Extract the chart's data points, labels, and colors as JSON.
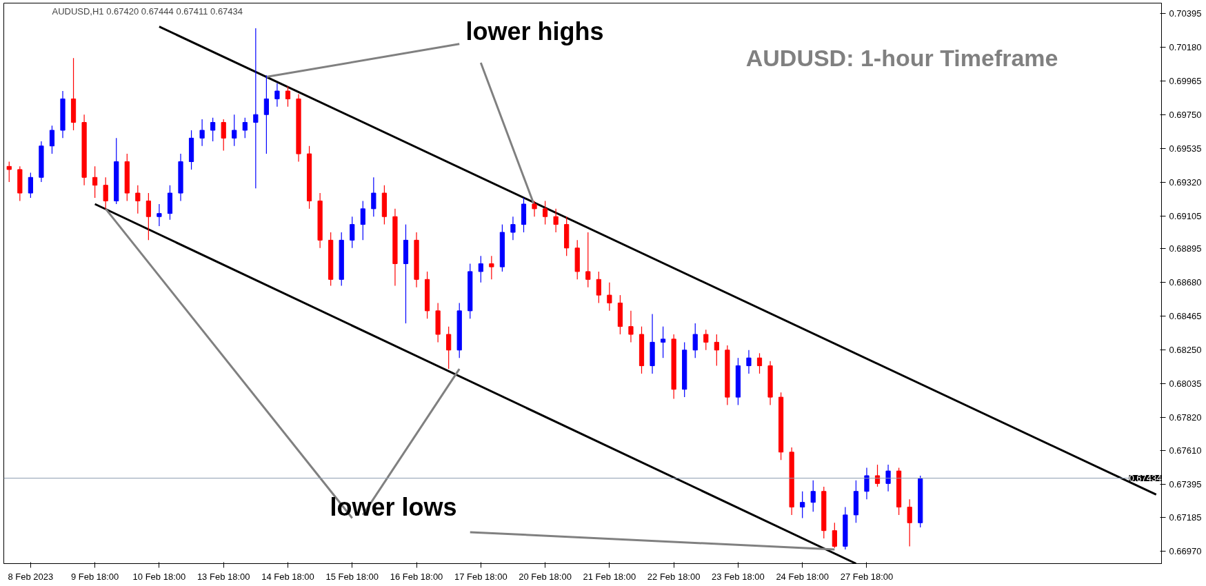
{
  "chart_data": {
    "type": "candlestick",
    "title": "AUDUSD: 1-hour Timeframe",
    "subtitle": "AUDUSD,H1  0.67420 0.67444 0.67411 0.67434",
    "categories": [
      null,
      null,
      "8 Feb 2023",
      null,
      null,
      null,
      null,
      null,
      "9 Feb 18:00",
      null,
      null,
      null,
      null,
      null,
      "10 Feb 18:00",
      null,
      null,
      null,
      null,
      null,
      "13 Feb 18:00",
      null,
      null,
      null,
      null,
      null,
      "14 Feb 18:00",
      null,
      null,
      null,
      null,
      null,
      "15 Feb 18:00",
      null,
      null,
      null,
      null,
      null,
      "16 Feb 18:00",
      null,
      null,
      null,
      null,
      null,
      "17 Feb 18:00",
      null,
      null,
      null,
      null,
      null,
      "20 Feb 18:00",
      null,
      null,
      null,
      null,
      null,
      "21 Feb 18:00",
      null,
      null,
      null,
      null,
      null,
      "22 Feb 18:00",
      null,
      null,
      null,
      null,
      null,
      "23 Feb 18:00",
      null,
      null,
      null,
      null,
      null,
      "24 Feb 18:00",
      null,
      null,
      null,
      null,
      null,
      "27 Feb 18:00",
      null,
      null,
      null,
      null,
      null,
      null,
      null,
      null,
      null,
      null,
      null,
      null,
      null,
      null,
      null,
      null,
      null,
      null,
      null,
      null,
      null,
      null,
      null,
      null,
      null,
      null,
      null
    ],
    "ohlc": [
      [
        0.6942,
        0.6945,
        0.6932,
        0.694
      ],
      [
        0.694,
        0.6942,
        0.692,
        0.6925
      ],
      [
        0.6925,
        0.6938,
        0.6922,
        0.6935
      ],
      [
        0.6935,
        0.6958,
        0.6932,
        0.6955
      ],
      [
        0.6955,
        0.6968,
        0.695,
        0.6965
      ],
      [
        0.6965,
        0.699,
        0.696,
        0.6985
      ],
      [
        0.6985,
        0.7011,
        0.6965,
        0.697
      ],
      [
        0.697,
        0.6975,
        0.693,
        0.6935
      ],
      [
        0.6935,
        0.6942,
        0.6922,
        0.693
      ],
      [
        0.693,
        0.6935,
        0.6915,
        0.692
      ],
      [
        0.692,
        0.696,
        0.6918,
        0.6945
      ],
      [
        0.6945,
        0.695,
        0.692,
        0.6925
      ],
      [
        0.6925,
        0.693,
        0.6912,
        0.692
      ],
      [
        0.692,
        0.6925,
        0.6895,
        0.691
      ],
      [
        0.691,
        0.6918,
        0.6904,
        0.6912
      ],
      [
        0.6912,
        0.693,
        0.6908,
        0.6925
      ],
      [
        0.6925,
        0.695,
        0.692,
        0.6945
      ],
      [
        0.6945,
        0.6965,
        0.694,
        0.696
      ],
      [
        0.696,
        0.6972,
        0.6955,
        0.6965
      ],
      [
        0.6965,
        0.6973,
        0.6958,
        0.697
      ],
      [
        0.697,
        0.6972,
        0.6952,
        0.696
      ],
      [
        0.696,
        0.6975,
        0.6955,
        0.6965
      ],
      [
        0.6965,
        0.6973,
        0.696,
        0.697
      ],
      [
        0.697,
        0.703,
        0.6928,
        0.6975
      ],
      [
        0.6975,
        0.7,
        0.695,
        0.6985
      ],
      [
        0.6985,
        0.6995,
        0.698,
        0.699
      ],
      [
        0.699,
        0.6993,
        0.698,
        0.6985
      ],
      [
        0.6985,
        0.6988,
        0.6945,
        0.695
      ],
      [
        0.695,
        0.6955,
        0.6915,
        0.692
      ],
      [
        0.692,
        0.6925,
        0.689,
        0.6895
      ],
      [
        0.6895,
        0.69,
        0.6866,
        0.687
      ],
      [
        0.687,
        0.69,
        0.6866,
        0.6895
      ],
      [
        0.6895,
        0.691,
        0.689,
        0.6905
      ],
      [
        0.6905,
        0.692,
        0.6895,
        0.6915
      ],
      [
        0.6915,
        0.6935,
        0.691,
        0.6925
      ],
      [
        0.6925,
        0.693,
        0.6905,
        0.691
      ],
      [
        0.691,
        0.6915,
        0.6866,
        0.688
      ],
      [
        0.688,
        0.6905,
        0.6842,
        0.6895
      ],
      [
        0.6895,
        0.69,
        0.6865,
        0.687
      ],
      [
        0.687,
        0.6875,
        0.6845,
        0.685
      ],
      [
        0.685,
        0.6855,
        0.683,
        0.6835
      ],
      [
        0.6835,
        0.684,
        0.6813,
        0.6825
      ],
      [
        0.6825,
        0.6855,
        0.682,
        0.685
      ],
      [
        0.685,
        0.688,
        0.6845,
        0.6875
      ],
      [
        0.6875,
        0.6885,
        0.6868,
        0.688
      ],
      [
        0.688,
        0.6885,
        0.687,
        0.6878
      ],
      [
        0.6878,
        0.6905,
        0.6875,
        0.69
      ],
      [
        0.69,
        0.691,
        0.6895,
        0.6905
      ],
      [
        0.6905,
        0.6922,
        0.69,
        0.6918
      ],
      [
        0.6918,
        0.692,
        0.691,
        0.6915
      ],
      [
        0.6915,
        0.692,
        0.6905,
        0.691
      ],
      [
        0.691,
        0.6915,
        0.69,
        0.6905
      ],
      [
        0.6905,
        0.691,
        0.6885,
        0.689
      ],
      [
        0.689,
        0.6895,
        0.687,
        0.6875
      ],
      [
        0.6875,
        0.69,
        0.6865,
        0.687
      ],
      [
        0.687,
        0.6875,
        0.6855,
        0.686
      ],
      [
        0.686,
        0.6868,
        0.685,
        0.6855
      ],
      [
        0.6855,
        0.686,
        0.6835,
        0.684
      ],
      [
        0.684,
        0.685,
        0.683,
        0.6835
      ],
      [
        0.6835,
        0.684,
        0.681,
        0.6815
      ],
      [
        0.6815,
        0.6848,
        0.681,
        0.683
      ],
      [
        0.683,
        0.684,
        0.682,
        0.6832
      ],
      [
        0.6832,
        0.6835,
        0.6794,
        0.68
      ],
      [
        0.68,
        0.683,
        0.6795,
        0.6825
      ],
      [
        0.6825,
        0.6842,
        0.682,
        0.6835
      ],
      [
        0.6835,
        0.6838,
        0.6825,
        0.683
      ],
      [
        0.683,
        0.6835,
        0.6815,
        0.6825
      ],
      [
        0.6825,
        0.6828,
        0.679,
        0.6795
      ],
      [
        0.6795,
        0.682,
        0.679,
        0.6815
      ],
      [
        0.6815,
        0.6825,
        0.681,
        0.682
      ],
      [
        0.682,
        0.6823,
        0.681,
        0.6815
      ],
      [
        0.6815,
        0.6818,
        0.679,
        0.6795
      ],
      [
        0.6795,
        0.6798,
        0.6755,
        0.676
      ],
      [
        0.676,
        0.6763,
        0.672,
        0.6725
      ],
      [
        0.6725,
        0.6735,
        0.6718,
        0.6728
      ],
      [
        0.6728,
        0.6742,
        0.6722,
        0.6735
      ],
      [
        0.6735,
        0.6738,
        0.6705,
        0.671
      ],
      [
        0.671,
        0.6715,
        0.6699,
        0.67
      ],
      [
        0.67,
        0.6725,
        0.6698,
        0.672
      ],
      [
        0.672,
        0.6742,
        0.6715,
        0.6735
      ],
      [
        0.6735,
        0.675,
        0.673,
        0.6745
      ],
      [
        0.6745,
        0.6752,
        0.6738,
        0.674
      ],
      [
        0.674,
        0.6752,
        0.6735,
        0.6748
      ],
      [
        0.6748,
        0.675,
        0.672,
        0.6725
      ],
      [
        0.6725,
        0.673,
        0.67,
        0.6715
      ],
      [
        0.6715,
        0.6745,
        0.6712,
        0.6743
      ],
      null,
      null,
      null,
      null,
      null,
      null,
      null,
      null,
      null,
      null,
      null,
      null,
      null,
      null,
      null,
      null,
      null,
      null,
      null,
      null,
      null,
      null
    ],
    "colors": [
      "#ff0000",
      "#ff0000",
      "#0000ff",
      "#0000ff",
      "#0000ff",
      "#0000ff",
      "#ff0000",
      "#ff0000",
      "#ff0000",
      "#ff0000",
      "#0000ff",
      "#ff0000",
      "#ff0000",
      "#ff0000",
      "#0000ff",
      "#0000ff",
      "#0000ff",
      "#0000ff",
      "#0000ff",
      "#0000ff",
      "#ff0000",
      "#0000ff",
      "#0000ff",
      "#0000ff",
      "#0000ff",
      "#0000ff",
      "#ff0000",
      "#ff0000",
      "#ff0000",
      "#ff0000",
      "#ff0000",
      "#0000ff",
      "#0000ff",
      "#0000ff",
      "#0000ff",
      "#ff0000",
      "#ff0000",
      "#0000ff",
      "#ff0000",
      "#ff0000",
      "#ff0000",
      "#ff0000",
      "#0000ff",
      "#0000ff",
      "#0000ff",
      "#ff0000",
      "#0000ff",
      "#0000ff",
      "#0000ff",
      "#ff0000",
      "#ff0000",
      "#ff0000",
      "#ff0000",
      "#ff0000",
      "#ff0000",
      "#ff0000",
      "#ff0000",
      "#ff0000",
      "#ff0000",
      "#ff0000",
      "#0000ff",
      "#0000ff",
      "#ff0000",
      "#0000ff",
      "#0000ff",
      "#ff0000",
      "#ff0000",
      "#ff0000",
      "#0000ff",
      "#0000ff",
      "#ff0000",
      "#ff0000",
      "#ff0000",
      "#ff0000",
      "#0000ff",
      "#0000ff",
      "#ff0000",
      "#ff0000",
      "#0000ff",
      "#0000ff",
      "#0000ff",
      "#ff0000",
      "#0000ff",
      "#ff0000",
      "#ff0000",
      "#0000ff",
      null,
      null,
      null,
      null,
      null,
      null,
      null,
      null,
      null,
      null,
      null,
      null,
      null,
      null,
      null,
      null,
      null,
      null,
      null,
      null,
      null,
      null
    ],
    "series": [
      {
        "type": "line",
        "color": "#000000",
        "values": [
          null,
          null,
          null,
          null,
          null,
          null,
          null,
          null,
          null,
          null,
          null,
          null,
          null,
          null,
          0.7031,
          null,
          null,
          null,
          null,
          null,
          null,
          null,
          null,
          null,
          null,
          null,
          null,
          null,
          null,
          null,
          null,
          null,
          null,
          null,
          null,
          null,
          null,
          null,
          null,
          null,
          null,
          null,
          null,
          null,
          null,
          null,
          null,
          null,
          null,
          null,
          null,
          null,
          null,
          null,
          null,
          null,
          null,
          null,
          null,
          null,
          null,
          null,
          null,
          null,
          null,
          null,
          null,
          null,
          null,
          null,
          null,
          null,
          null,
          null,
          null,
          null,
          null,
          null,
          null,
          null,
          null,
          null,
          null,
          null,
          null,
          null,
          null,
          null,
          null,
          null,
          null,
          null,
          null,
          null,
          null,
          null,
          null,
          null,
          null,
          null,
          null,
          null,
          null,
          null,
          null,
          null,
          null,
          0.6733
        ]
      },
      {
        "type": "line",
        "color": "#000000",
        "values": [
          null,
          null,
          null,
          null,
          null,
          null,
          null,
          null,
          0.6918,
          null,
          null,
          null,
          null,
          null,
          null,
          null,
          null,
          null,
          null,
          null,
          null,
          null,
          null,
          null,
          null,
          null,
          null,
          null,
          null,
          null,
          null,
          null,
          null,
          null,
          null,
          null,
          null,
          null,
          null,
          null,
          null,
          null,
          null,
          null,
          null,
          null,
          null,
          null,
          null,
          null,
          null,
          null,
          null,
          null,
          null,
          null,
          null,
          null,
          null,
          null,
          null,
          null,
          null,
          null,
          null,
          null,
          null,
          null,
          null,
          null,
          null,
          null,
          null,
          null,
          null,
          null,
          null,
          null,
          null,
          0.6689,
          null,
          null,
          null,
          null,
          null,
          null,
          null,
          null,
          null,
          null,
          null,
          null,
          null,
          null,
          null,
          null,
          null,
          null,
          null,
          null,
          null,
          null,
          null,
          null,
          null,
          null,
          null,
          null
        ]
      },
      {
        "type": "line",
        "color": "#808080",
        "values": [
          null,
          null,
          null,
          null,
          null,
          null,
          null,
          null,
          null,
          null,
          null,
          null,
          null,
          null,
          null,
          null,
          null,
          null,
          null,
          null,
          null,
          null,
          null,
          null,
          0.6999,
          null,
          null,
          null,
          null,
          null,
          null,
          null,
          null,
          null,
          null,
          null,
          null,
          null,
          null,
          null,
          null,
          null,
          0.702,
          null,
          null,
          null,
          null,
          null,
          null,
          null,
          null,
          null,
          null,
          null,
          null,
          null,
          null,
          null,
          null,
          null,
          null,
          null,
          null,
          null,
          null,
          null,
          null,
          null,
          null,
          null,
          null,
          null,
          null,
          null,
          null,
          null,
          null,
          null,
          null,
          null,
          null,
          null,
          null,
          null,
          null,
          null,
          null,
          null,
          null,
          null,
          null,
          null,
          null,
          null,
          null,
          null,
          null,
          null,
          null,
          null,
          null,
          null,
          null,
          null,
          null,
          null,
          null,
          null
        ]
      },
      {
        "type": "line",
        "color": "#808080",
        "values": [
          null,
          null,
          null,
          null,
          null,
          null,
          null,
          null,
          null,
          null,
          null,
          null,
          null,
          null,
          null,
          null,
          null,
          null,
          null,
          null,
          null,
          null,
          null,
          null,
          null,
          null,
          null,
          null,
          null,
          null,
          null,
          null,
          null,
          null,
          null,
          null,
          null,
          null,
          null,
          null,
          null,
          null,
          null,
          null,
          0.7008,
          null,
          null,
          null,
          null,
          0.6917,
          null,
          null,
          null,
          null,
          null,
          null,
          null,
          null,
          null,
          null,
          null,
          null,
          null,
          null,
          null,
          null,
          null,
          null,
          null,
          null,
          null,
          null,
          null,
          null,
          null,
          null,
          null,
          null,
          null,
          null,
          null,
          null,
          null,
          null,
          null,
          null,
          null,
          null,
          null,
          null,
          null,
          null,
          null,
          null,
          null,
          null,
          null,
          null,
          null,
          null,
          null,
          null,
          null,
          null,
          null,
          null,
          null,
          null
        ]
      },
      {
        "type": "line",
        "color": "#808080",
        "values": [
          null,
          null,
          null,
          null,
          null,
          null,
          null,
          null,
          null,
          0.6915,
          null,
          null,
          null,
          null,
          null,
          null,
          null,
          null,
          null,
          null,
          null,
          null,
          null,
          null,
          null,
          null,
          null,
          null,
          null,
          null,
          null,
          null,
          0.6718,
          null,
          null,
          null,
          null,
          null,
          null,
          null,
          null,
          null,
          null,
          null,
          null,
          null,
          null,
          null,
          null,
          null,
          null,
          null,
          null,
          null,
          null,
          null,
          null,
          null,
          null,
          null,
          null,
          null,
          null,
          null,
          null,
          null,
          null,
          null,
          null,
          null,
          null,
          null,
          null,
          null,
          null,
          null,
          null,
          null,
          null,
          null,
          null,
          null,
          null,
          null,
          null,
          null,
          null,
          null,
          null,
          null,
          null,
          null,
          null,
          null,
          null,
          null,
          null,
          null,
          null,
          null,
          null,
          null,
          null,
          null,
          null,
          null,
          null,
          null
        ]
      },
      {
        "type": "line",
        "color": "#808080",
        "values": [
          null,
          null,
          null,
          null,
          null,
          null,
          null,
          null,
          null,
          null,
          null,
          null,
          null,
          null,
          null,
          null,
          null,
          null,
          null,
          null,
          null,
          null,
          null,
          null,
          null,
          null,
          null,
          null,
          null,
          null,
          null,
          null,
          null,
          0.672,
          null,
          null,
          null,
          null,
          null,
          null,
          null,
          null,
          0.6813,
          null,
          null,
          null,
          null,
          null,
          null,
          null,
          null,
          null,
          null,
          null,
          null,
          null,
          null,
          null,
          null,
          null,
          null,
          null,
          null,
          null,
          null,
          null,
          null,
          null,
          null,
          null,
          null,
          null,
          null,
          null,
          null,
          null,
          null,
          null,
          null,
          null,
          null,
          null,
          null,
          null,
          null,
          null,
          null,
          null,
          null,
          null,
          null,
          null,
          null,
          null,
          null,
          null,
          null,
          null,
          null,
          null,
          null,
          null,
          null,
          null,
          null,
          null,
          null,
          null
        ]
      },
      {
        "type": "line",
        "color": "#808080",
        "values": [
          null,
          null,
          null,
          null,
          null,
          null,
          null,
          null,
          null,
          null,
          null,
          null,
          null,
          null,
          null,
          null,
          null,
          null,
          null,
          null,
          null,
          null,
          null,
          null,
          null,
          null,
          null,
          null,
          null,
          null,
          null,
          null,
          null,
          null,
          null,
          null,
          null,
          null,
          null,
          null,
          null,
          null,
          null,
          0.6709,
          null,
          null,
          null,
          null,
          null,
          null,
          null,
          null,
          null,
          null,
          null,
          null,
          null,
          null,
          null,
          null,
          null,
          null,
          null,
          null,
          null,
          null,
          null,
          null,
          null,
          null,
          null,
          null,
          null,
          null,
          null,
          null,
          null,
          0.6698,
          null,
          null,
          null,
          null,
          null,
          null,
          null,
          null,
          null,
          null,
          null,
          null,
          null,
          null,
          null,
          null,
          null,
          null,
          null,
          null,
          null,
          null,
          null,
          null,
          null,
          null,
          null,
          null,
          null,
          null
        ]
      }
    ],
    "annotations": [
      "lower highs",
      "lower lows"
    ],
    "ref_lines": [
      {
        "axis": "y",
        "value": 0.67434,
        "label": "0.67434",
        "color": "#8c9bb0"
      }
    ],
    "ylim": [
      0.6689,
      0.7046
    ],
    "yticks": [
      {
        "value": 0.70395,
        "label": "0.70395"
      },
      {
        "value": 0.7018,
        "label": "0.70180"
      },
      {
        "value": 0.69965,
        "label": "0.69965"
      },
      {
        "value": 0.6975,
        "label": "0.69750"
      },
      {
        "value": 0.69535,
        "label": "0.69535"
      },
      {
        "value": 0.6932,
        "label": "0.69320"
      },
      {
        "value": 0.69105,
        "label": "0.69105"
      },
      {
        "value": 0.68895,
        "label": "0.68895"
      },
      {
        "value": 0.6868,
        "label": "0.68680"
      },
      {
        "value": 0.68465,
        "label": "0.68465"
      },
      {
        "value": 0.6825,
        "label": "0.68250"
      },
      {
        "value": 0.68035,
        "label": "0.68035"
      },
      {
        "value": 0.6782,
        "label": "0.67820"
      },
      {
        "value": 0.6761,
        "label": "0.67610"
      },
      {
        "value": 0.67395,
        "label": "0.67395"
      },
      {
        "value": 0.67185,
        "label": "0.67185"
      },
      {
        "value": 0.6697,
        "label": "0.66970"
      }
    ],
    "grid": false
  }
}
